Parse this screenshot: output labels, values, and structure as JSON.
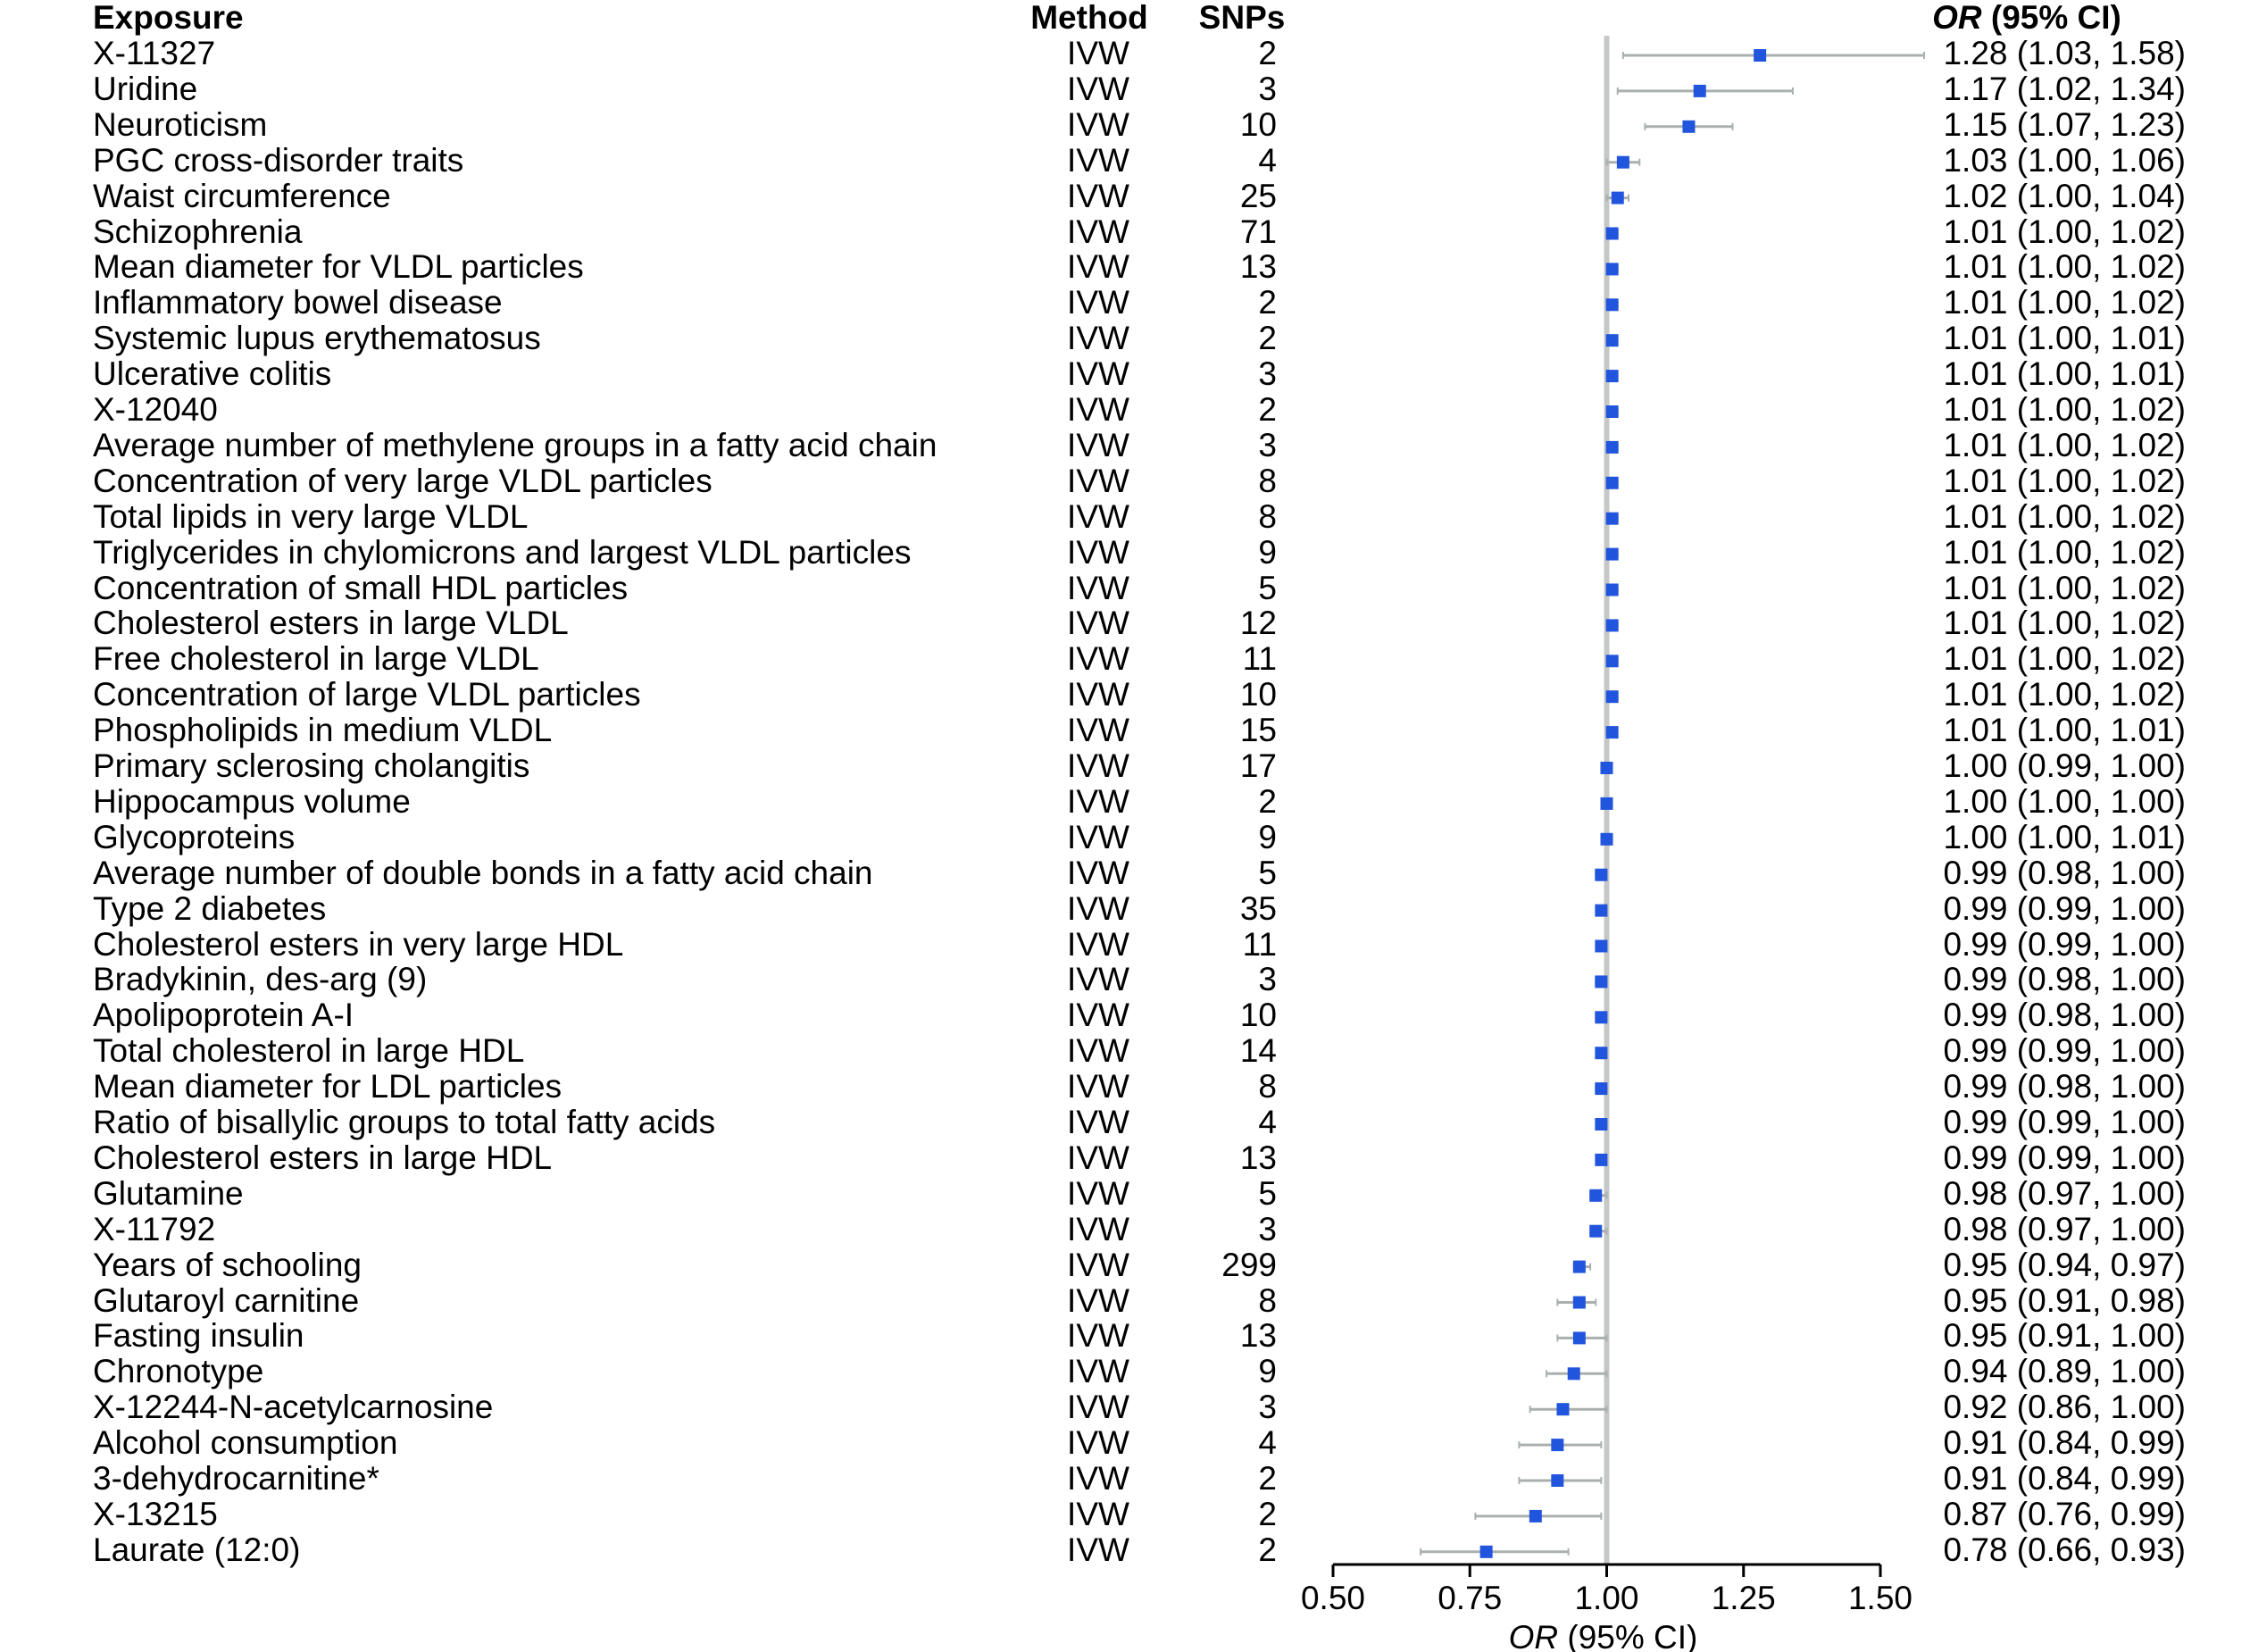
{
  "headers": {
    "exposure": "Exposure",
    "method": "Method",
    "snps": "SNPs",
    "or_ci_italic": "OR",
    "or_ci_rest": " (95% CI)"
  },
  "chart_data": {
    "type": "forest",
    "xlabel_italic": "OR",
    "xlabel_rest": " (95% CI)",
    "xlim": [
      0.5,
      1.5
    ],
    "xticks": [
      "0.50",
      "0.75",
      "1.00",
      "1.25",
      "1.50"
    ],
    "reference_line": 1.0,
    "colors": {
      "point": "#2255dd",
      "ci": "#aab0b0",
      "refline": "#c4c8c6",
      "axis": "#000000"
    },
    "rows": [
      {
        "exposure": "X-11327",
        "method": "IVW",
        "snps": "2",
        "or": 1.28,
        "lo": 1.03,
        "hi": 1.58,
        "or_text": "1.28 (1.03, 1.58)"
      },
      {
        "exposure": "Uridine",
        "method": "IVW",
        "snps": "3",
        "or": 1.17,
        "lo": 1.02,
        "hi": 1.34,
        "or_text": "1.17 (1.02, 1.34)"
      },
      {
        "exposure": "Neuroticism",
        "method": "IVW",
        "snps": "10",
        "or": 1.15,
        "lo": 1.07,
        "hi": 1.23,
        "or_text": "1.15 (1.07, 1.23)"
      },
      {
        "exposure": "PGC cross-disorder traits",
        "method": "IVW",
        "snps": "4",
        "or": 1.03,
        "lo": 1.0,
        "hi": 1.06,
        "or_text": "1.03 (1.00, 1.06)"
      },
      {
        "exposure": "Waist circumference",
        "method": "IVW",
        "snps": "25",
        "or": 1.02,
        "lo": 1.0,
        "hi": 1.04,
        "or_text": "1.02 (1.00, 1.04)"
      },
      {
        "exposure": "Schizophrenia",
        "method": "IVW",
        "snps": "71",
        "or": 1.01,
        "lo": 1.0,
        "hi": 1.02,
        "or_text": "1.01 (1.00, 1.02)"
      },
      {
        "exposure": "Mean diameter for VLDL particles",
        "method": "IVW",
        "snps": "13",
        "or": 1.01,
        "lo": 1.0,
        "hi": 1.02,
        "or_text": "1.01 (1.00, 1.02)"
      },
      {
        "exposure": "Inflammatory bowel disease",
        "method": "IVW",
        "snps": "2",
        "or": 1.01,
        "lo": 1.0,
        "hi": 1.02,
        "or_text": "1.01 (1.00, 1.02)"
      },
      {
        "exposure": "Systemic lupus erythematosus",
        "method": "IVW",
        "snps": "2",
        "or": 1.01,
        "lo": 1.0,
        "hi": 1.01,
        "or_text": "1.01 (1.00, 1.01)"
      },
      {
        "exposure": "Ulcerative colitis",
        "method": "IVW",
        "snps": "3",
        "or": 1.01,
        "lo": 1.0,
        "hi": 1.01,
        "or_text": "1.01 (1.00, 1.01)"
      },
      {
        "exposure": "X-12040",
        "method": "IVW",
        "snps": "2",
        "or": 1.01,
        "lo": 1.0,
        "hi": 1.02,
        "or_text": "1.01 (1.00, 1.02)"
      },
      {
        "exposure": "Average number of methylene groups in a fatty acid chain",
        "method": "IVW",
        "snps": "3",
        "or": 1.01,
        "lo": 1.0,
        "hi": 1.02,
        "or_text": "1.01 (1.00, 1.02)"
      },
      {
        "exposure": "Concentration of very large VLDL particles",
        "method": "IVW",
        "snps": "8",
        "or": 1.01,
        "lo": 1.0,
        "hi": 1.02,
        "or_text": "1.01 (1.00, 1.02)"
      },
      {
        "exposure": "Total lipids in very large VLDL",
        "method": "IVW",
        "snps": "8",
        "or": 1.01,
        "lo": 1.0,
        "hi": 1.02,
        "or_text": "1.01 (1.00, 1.02)"
      },
      {
        "exposure": "Triglycerides in chylomicrons and largest VLDL particles",
        "method": "IVW",
        "snps": "9",
        "or": 1.01,
        "lo": 1.0,
        "hi": 1.02,
        "or_text": "1.01 (1.00, 1.02)"
      },
      {
        "exposure": "Concentration of small HDL particles",
        "method": "IVW",
        "snps": "5",
        "or": 1.01,
        "lo": 1.0,
        "hi": 1.02,
        "or_text": "1.01 (1.00, 1.02)"
      },
      {
        "exposure": "Cholesterol esters in large VLDL",
        "method": "IVW",
        "snps": "12",
        "or": 1.01,
        "lo": 1.0,
        "hi": 1.02,
        "or_text": "1.01 (1.00, 1.02)"
      },
      {
        "exposure": "Free cholesterol in large VLDL",
        "method": "IVW",
        "snps": "11",
        "or": 1.01,
        "lo": 1.0,
        "hi": 1.02,
        "or_text": "1.01 (1.00, 1.02)"
      },
      {
        "exposure": "Concentration of large VLDL particles",
        "method": "IVW",
        "snps": "10",
        "or": 1.01,
        "lo": 1.0,
        "hi": 1.02,
        "or_text": "1.01 (1.00, 1.02)"
      },
      {
        "exposure": "Phospholipids in medium VLDL",
        "method": "IVW",
        "snps": "15",
        "or": 1.01,
        "lo": 1.0,
        "hi": 1.01,
        "or_text": "1.01 (1.00, 1.01)"
      },
      {
        "exposure": "Primary sclerosing cholangitis",
        "method": "IVW",
        "snps": "17",
        "or": 1.0,
        "lo": 0.99,
        "hi": 1.0,
        "or_text": "1.00 (0.99, 1.00)"
      },
      {
        "exposure": "Hippocampus volume",
        "method": "IVW",
        "snps": "2",
        "or": 1.0,
        "lo": 1.0,
        "hi": 1.0,
        "or_text": "1.00 (1.00, 1.00)"
      },
      {
        "exposure": "Glycoproteins",
        "method": "IVW",
        "snps": "9",
        "or": 1.0,
        "lo": 1.0,
        "hi": 1.01,
        "or_text": "1.00 (1.00, 1.01)"
      },
      {
        "exposure": "Average number of double bonds in a fatty acid chain",
        "method": "IVW",
        "snps": "5",
        "or": 0.99,
        "lo": 0.98,
        "hi": 1.0,
        "or_text": "0.99 (0.98, 1.00)"
      },
      {
        "exposure": "Type 2 diabetes",
        "method": "IVW",
        "snps": "35",
        "or": 0.99,
        "lo": 0.99,
        "hi": 1.0,
        "or_text": "0.99 (0.99, 1.00)"
      },
      {
        "exposure": "Cholesterol esters in very large HDL",
        "method": "IVW",
        "snps": "11",
        "or": 0.99,
        "lo": 0.99,
        "hi": 1.0,
        "or_text": "0.99 (0.99, 1.00)"
      },
      {
        "exposure": "Bradykinin, des-arg (9)",
        "method": "IVW",
        "snps": "3",
        "or": 0.99,
        "lo": 0.98,
        "hi": 1.0,
        "or_text": "0.99 (0.98, 1.00)"
      },
      {
        "exposure": "Apolipoprotein A-I",
        "method": "IVW",
        "snps": "10",
        "or": 0.99,
        "lo": 0.98,
        "hi": 1.0,
        "or_text": "0.99 (0.98, 1.00)"
      },
      {
        "exposure": "Total cholesterol in large HDL",
        "method": "IVW",
        "snps": "14",
        "or": 0.99,
        "lo": 0.99,
        "hi": 1.0,
        "or_text": "0.99 (0.99, 1.00)"
      },
      {
        "exposure": "Mean diameter for LDL particles",
        "method": "IVW",
        "snps": "8",
        "or": 0.99,
        "lo": 0.98,
        "hi": 1.0,
        "or_text": "0.99 (0.98, 1.00)"
      },
      {
        "exposure": "Ratio of bisallylic groups to total fatty acids",
        "method": "IVW",
        "snps": "4",
        "or": 0.99,
        "lo": 0.99,
        "hi": 1.0,
        "or_text": "0.99 (0.99, 1.00)"
      },
      {
        "exposure": "Cholesterol esters in large HDL",
        "method": "IVW",
        "snps": "13",
        "or": 0.99,
        "lo": 0.99,
        "hi": 1.0,
        "or_text": "0.99 (0.99, 1.00)"
      },
      {
        "exposure": "Glutamine",
        "method": "IVW",
        "snps": "5",
        "or": 0.98,
        "lo": 0.97,
        "hi": 1.0,
        "or_text": "0.98 (0.97, 1.00)"
      },
      {
        "exposure": "X-11792",
        "method": "IVW",
        "snps": "3",
        "or": 0.98,
        "lo": 0.97,
        "hi": 1.0,
        "or_text": "0.98 (0.97, 1.00)"
      },
      {
        "exposure": "Years of schooling",
        "method": "IVW",
        "snps": "299",
        "or": 0.95,
        "lo": 0.94,
        "hi": 0.97,
        "or_text": "0.95 (0.94, 0.97)"
      },
      {
        "exposure": "Glutaroyl carnitine",
        "method": "IVW",
        "snps": "8",
        "or": 0.95,
        "lo": 0.91,
        "hi": 0.98,
        "or_text": "0.95 (0.91, 0.98)"
      },
      {
        "exposure": "Fasting insulin",
        "method": "IVW",
        "snps": "13",
        "or": 0.95,
        "lo": 0.91,
        "hi": 1.0,
        "or_text": "0.95 (0.91, 1.00)"
      },
      {
        "exposure": "Chronotype",
        "method": "IVW",
        "snps": "9",
        "or": 0.94,
        "lo": 0.89,
        "hi": 1.0,
        "or_text": "0.94 (0.89, 1.00)"
      },
      {
        "exposure": "X-12244-N-acetylcarnosine",
        "method": "IVW",
        "snps": "3",
        "or": 0.92,
        "lo": 0.86,
        "hi": 1.0,
        "or_text": "0.92 (0.86, 1.00)"
      },
      {
        "exposure": "Alcohol consumption",
        "method": "IVW",
        "snps": "4",
        "or": 0.91,
        "lo": 0.84,
        "hi": 0.99,
        "or_text": "0.91 (0.84, 0.99)"
      },
      {
        "exposure": "3-dehydrocarnitine*",
        "method": "IVW",
        "snps": "2",
        "or": 0.91,
        "lo": 0.84,
        "hi": 0.99,
        "or_text": "0.91 (0.84, 0.99)"
      },
      {
        "exposure": "X-13215",
        "method": "IVW",
        "snps": "2",
        "or": 0.87,
        "lo": 0.76,
        "hi": 0.99,
        "or_text": "0.87 (0.76, 0.99)"
      },
      {
        "exposure": "Laurate (12:0)",
        "method": "IVW",
        "snps": "2",
        "or": 0.78,
        "lo": 0.66,
        "hi": 0.93,
        "or_text": "0.78 (0.66, 0.93)"
      }
    ]
  }
}
